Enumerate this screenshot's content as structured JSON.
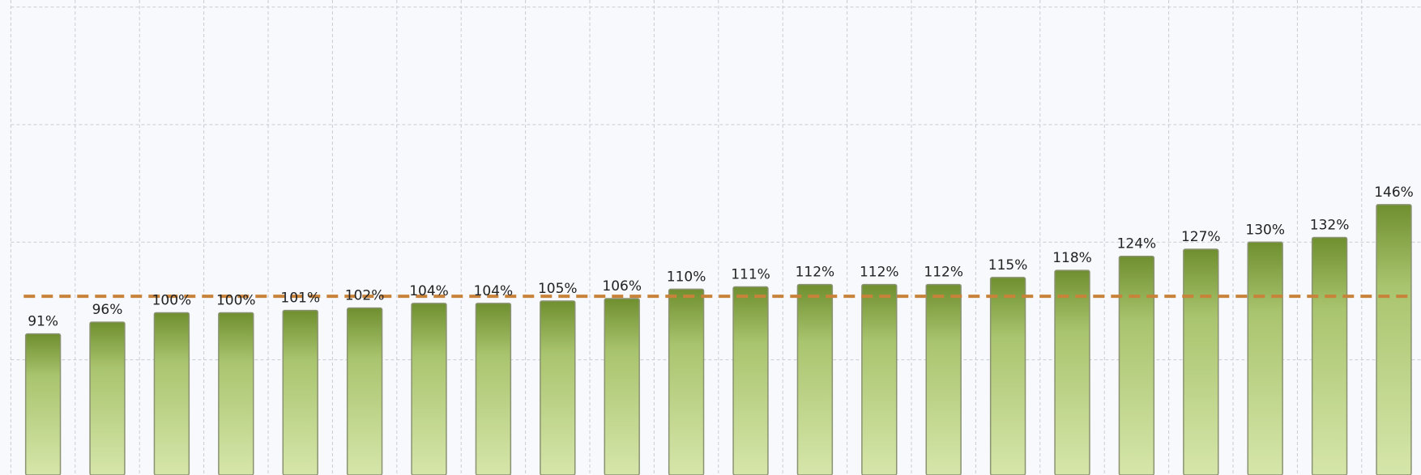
{
  "chart_data": {
    "type": "bar",
    "values": [
      91,
      96,
      100,
      100,
      101,
      102,
      104,
      104,
      105,
      106,
      110,
      111,
      112,
      112,
      112,
      115,
      118,
      124,
      127,
      130,
      132,
      146
    ],
    "value_labels": [
      "91%",
      "96%",
      "100%",
      "100%",
      "101%",
      "102%",
      "104%",
      "104%",
      "105%",
      "106%",
      "110%",
      "111%",
      "112%",
      "112%",
      "112%",
      "115%",
      "118%",
      "124%",
      "127%",
      "130%",
      "132%",
      "146%"
    ],
    "color": "#7a9a3a",
    "ylim": [
      31,
      233
    ],
    "yticks": [
      80,
      130,
      180,
      230
    ],
    "grid": true,
    "reference_line": 107,
    "reference_color": "#c8823a"
  }
}
